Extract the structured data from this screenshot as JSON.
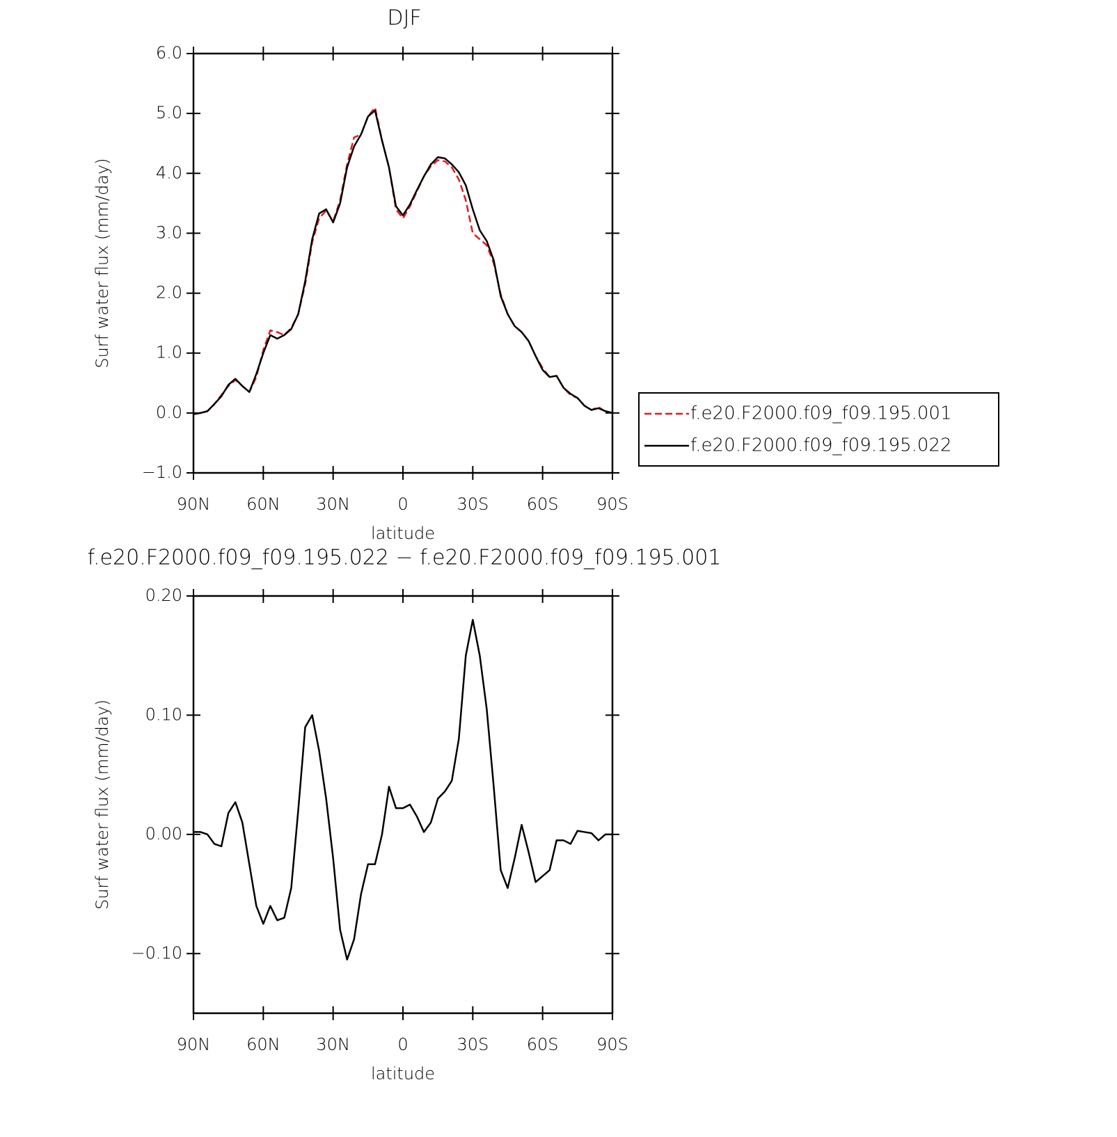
{
  "chart_data": [
    {
      "type": "line",
      "title": "DJF",
      "x_label": "latitude",
      "y_label": "Surf water flux (mm/day)",
      "x": [
        90,
        87,
        84,
        81,
        78,
        75,
        72,
        69,
        66,
        63,
        60,
        57,
        54,
        51,
        48,
        45,
        42,
        39,
        36,
        33,
        30,
        27,
        24,
        21,
        18,
        15,
        12,
        9,
        6,
        3,
        0,
        -3,
        -6,
        -9,
        -12,
        -15,
        -18,
        -21,
        -24,
        -27,
        -30,
        -33,
        -36,
        -39,
        -42,
        -45,
        -48,
        -51,
        -54,
        -57,
        -60,
        -63,
        -66,
        -69,
        -72,
        -75,
        -78,
        -81,
        -84,
        -87,
        -90
      ],
      "xlim": [
        90,
        -90
      ],
      "xticks": [
        {
          "value": 90,
          "label": "90N"
        },
        {
          "value": 60,
          "label": "60N"
        },
        {
          "value": 30,
          "label": "30N"
        },
        0,
        {
          "value": -30,
          "label": "30S"
        },
        {
          "value": -60,
          "label": "60S"
        },
        {
          "value": -90,
          "label": "90S"
        }
      ],
      "ylim": [
        -1,
        6
      ],
      "yticks": [
        {
          "value": 6,
          "label": "6.0"
        },
        {
          "value": 5,
          "label": "5.0"
        },
        {
          "value": 4,
          "label": "4.0"
        },
        {
          "value": 3,
          "label": "3.0"
        },
        {
          "value": 2,
          "label": "2.0"
        },
        {
          "value": 1,
          "label": "1.0"
        },
        {
          "value": 0,
          "label": "0.0"
        },
        {
          "value": -1,
          "label": "−1.0"
        }
      ],
      "legend": "right",
      "series": [
        {
          "name": "f.e20.F2000.f09_f09.195.001",
          "color": "#e41a1c",
          "dashed": true,
          "values": [
            -0.02,
            0.0,
            0.03,
            0.15,
            0.3,
            0.45,
            0.55,
            0.45,
            0.35,
            0.6,
            1.05,
            1.38,
            1.35,
            1.3,
            1.42,
            1.65,
            2.15,
            2.85,
            3.25,
            3.38,
            3.2,
            3.55,
            4.15,
            4.6,
            4.65,
            4.95,
            5.1,
            4.55,
            4.1,
            3.4,
            3.25,
            3.45,
            3.7,
            3.95,
            4.12,
            4.22,
            4.2,
            4.1,
            3.9,
            3.55,
            3.0,
            2.9,
            2.8,
            2.5,
            1.98,
            1.65,
            1.45,
            1.35,
            1.2,
            0.95,
            0.75,
            0.6,
            0.62,
            0.42,
            0.3,
            0.25,
            0.12,
            0.05,
            0.1,
            0.02,
            0.0
          ]
        },
        {
          "name": "f.e20.F2000.f09_f09.195.022",
          "color": "#000000",
          "dashed": false,
          "values": [
            -0.02,
            0.0,
            0.03,
            0.15,
            0.28,
            0.47,
            0.57,
            0.45,
            0.35,
            0.65,
            1.0,
            1.3,
            1.24,
            1.3,
            1.4,
            1.65,
            2.2,
            2.9,
            3.33,
            3.4,
            3.18,
            3.5,
            4.1,
            4.45,
            4.65,
            4.95,
            5.05,
            4.55,
            4.1,
            3.45,
            3.3,
            3.48,
            3.72,
            3.95,
            4.15,
            4.27,
            4.25,
            4.15,
            4.02,
            3.8,
            3.4,
            3.05,
            2.87,
            2.55,
            1.95,
            1.65,
            1.45,
            1.35,
            1.2,
            0.95,
            0.72,
            0.6,
            0.62,
            0.42,
            0.32,
            0.25,
            0.12,
            0.05,
            0.08,
            0.03,
            0.0
          ]
        }
      ]
    },
    {
      "type": "line",
      "title": "f.e20.F2000.f09_f09.195.022 − f.e20.F2000.f09_f09.195.001",
      "x_label": "latitude",
      "y_label": "Surf water flux (mm/day)",
      "x": [
        90,
        87,
        84,
        81,
        78,
        75,
        72,
        69,
        66,
        63,
        60,
        57,
        54,
        51,
        48,
        45,
        42,
        39,
        36,
        33,
        30,
        27,
        24,
        21,
        18,
        15,
        12,
        9,
        6,
        3,
        0,
        -3,
        -6,
        -9,
        -12,
        -15,
        -18,
        -21,
        -24,
        -27,
        -30,
        -33,
        -36,
        -39,
        -42,
        -45,
        -48,
        -51,
        -54,
        -57,
        -60,
        -63,
        -66,
        -69,
        -72,
        -75,
        -78,
        -81,
        -84,
        -87,
        -90
      ],
      "xlim": [
        90,
        -90
      ],
      "xticks": [
        {
          "value": 90,
          "label": "90N"
        },
        {
          "value": 60,
          "label": "60N"
        },
        {
          "value": 30,
          "label": "30N"
        },
        0,
        {
          "value": -30,
          "label": "30S"
        },
        {
          "value": -60,
          "label": "60S"
        },
        {
          "value": -90,
          "label": "90S"
        }
      ],
      "ylim": [
        -0.15,
        0.2
      ],
      "yticks": [
        {
          "value": 0.2,
          "label": "0.20"
        },
        {
          "value": 0.1,
          "label": "0.10"
        },
        {
          "value": 0,
          "label": "0.00"
        },
        {
          "value": -0.1,
          "label": "−0.10"
        }
      ],
      "series": [
        {
          "color": "#000000",
          "dashed": false,
          "values": [
            0.002,
            0.002,
            0.0,
            -0.008,
            -0.01,
            0.018,
            0.027,
            0.01,
            -0.025,
            -0.06,
            -0.075,
            -0.06,
            -0.072,
            -0.07,
            -0.045,
            0.02,
            0.09,
            0.1,
            0.07,
            0.03,
            -0.02,
            -0.08,
            -0.105,
            -0.088,
            -0.05,
            -0.025,
            -0.025,
            0.0,
            0.04,
            0.022,
            0.022,
            0.025,
            0.015,
            0.002,
            0.01,
            0.03,
            0.036,
            0.045,
            0.08,
            0.15,
            0.18,
            0.15,
            0.105,
            0.04,
            -0.03,
            -0.045,
            -0.02,
            0.008,
            -0.015,
            -0.04,
            -0.035,
            -0.03,
            -0.005,
            -0.005,
            -0.008,
            0.003,
            0.002,
            0.001,
            -0.005,
            0.0,
            0.0
          ]
        }
      ]
    }
  ]
}
